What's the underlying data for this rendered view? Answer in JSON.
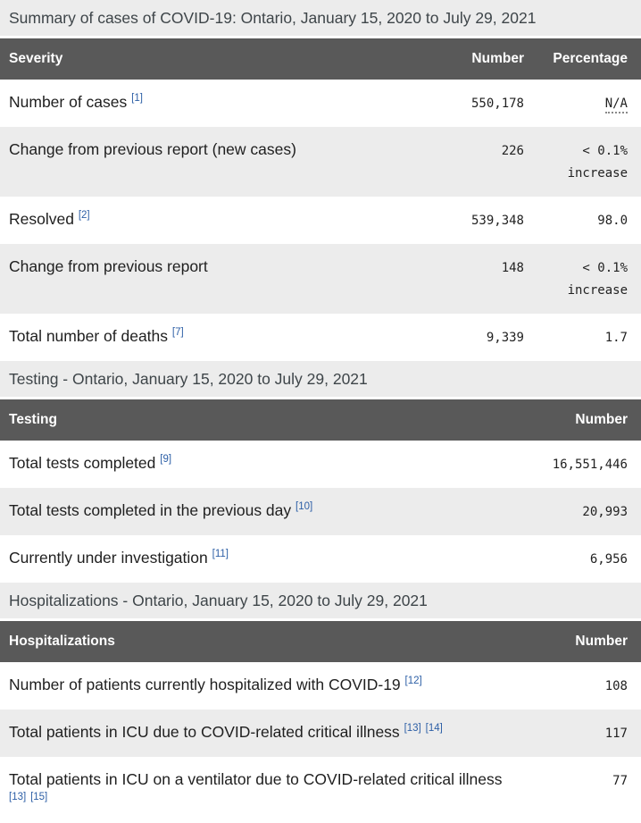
{
  "colors": {
    "table_header_bg": "#595959",
    "table_header_text": "#ffffff",
    "section_band_bg": "#ececec",
    "alt_row_bg": "#ececec",
    "footnote_link_blue": "#2d5fa6",
    "heading_text": "#3e4549"
  },
  "sections": [
    {
      "heading": "Summary of cases of COVID-19: Ontario, January 15, 2020 to July 29, 2021",
      "columns": {
        "label": "Severity",
        "number": "Number",
        "percentage": "Percentage"
      },
      "rows": [
        {
          "label": "Number of cases",
          "footnotes": [
            "1"
          ],
          "number": "550,178",
          "percentage": "N/A",
          "na": true
        },
        {
          "label": "Change from previous report (new cases)",
          "footnotes": [],
          "number": "226",
          "percentage": "< 0.1% increase"
        },
        {
          "label": "Resolved",
          "footnotes": [
            "2"
          ],
          "number": "539,348",
          "percentage": "98.0"
        },
        {
          "label": "Change from previous report",
          "footnotes": [],
          "number": "148",
          "percentage": "< 0.1% increase"
        },
        {
          "label": "Total number of deaths",
          "footnotes": [
            "7"
          ],
          "number": "9,339",
          "percentage": "1.7"
        }
      ]
    },
    {
      "heading": "Testing - Ontario, January 15, 2020 to July 29, 2021",
      "columns": {
        "label": "Testing",
        "number": "Number"
      },
      "rows": [
        {
          "label": "Total tests completed",
          "footnotes": [
            "9"
          ],
          "number": "16,551,446"
        },
        {
          "label": "Total tests completed in the previous day",
          "footnotes": [
            "10"
          ],
          "number": "20,993"
        },
        {
          "label": "Currently under investigation",
          "footnotes": [
            "11"
          ],
          "number": "6,956"
        }
      ]
    },
    {
      "heading": "Hospitalizations - Ontario, January 15, 2020 to July 29, 2021",
      "columns": {
        "label": "Hospitalizations",
        "number": "Number"
      },
      "rows": [
        {
          "label": "Number of patients currently hospitalized with COVID-19",
          "footnotes": [
            "12"
          ],
          "number": "108"
        },
        {
          "label": "Total patients in ICU due to COVID-related critical illness",
          "footnotes": [
            "13",
            "14"
          ],
          "number": "117"
        },
        {
          "label": "Total patients in ICU on a ventilator due to COVID-related critical illness",
          "footnotes": [
            "13",
            "15"
          ],
          "number": "77"
        }
      ]
    }
  ]
}
